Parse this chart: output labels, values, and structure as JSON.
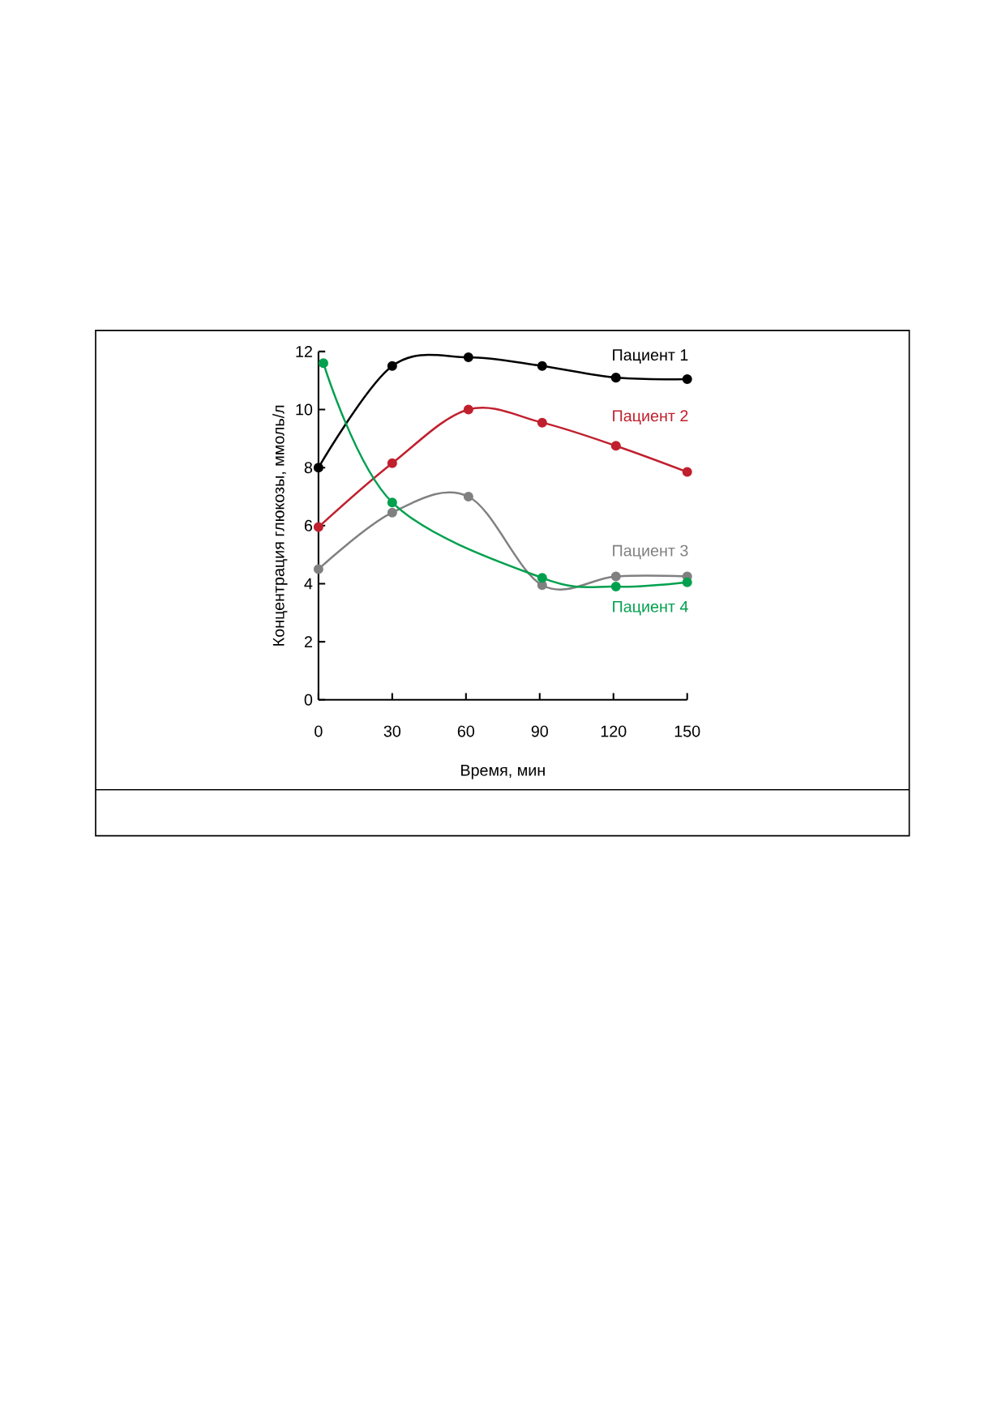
{
  "chart_data": {
    "type": "line",
    "xlabel": "Время, мин",
    "ylabel": "Концентрация глюкозы, ммоль/л",
    "xlim": [
      0,
      150
    ],
    "ylim": [
      0,
      12
    ],
    "xticks": [
      0,
      30,
      60,
      90,
      120,
      150
    ],
    "yticks": [
      0,
      2,
      4,
      6,
      8,
      10,
      12
    ],
    "grid": false,
    "legend": false,
    "marker": "circle",
    "line_style": "solid",
    "series": [
      {
        "name": "Пациент 1",
        "color": "#000000",
        "x": [
          0,
          30,
          61,
          91,
          121,
          150
        ],
        "values": [
          8.0,
          11.5,
          11.8,
          11.5,
          11.1,
          11.05
        ]
      },
      {
        "name": "Пациент 2",
        "color": "#c0202e",
        "x": [
          0,
          30,
          61,
          91,
          121,
          150
        ],
        "values": [
          5.95,
          8.15,
          10.0,
          9.55,
          8.75,
          7.85
        ]
      },
      {
        "name": "Пациент 3",
        "color": "#808080",
        "x": [
          0,
          30,
          61,
          91,
          121,
          150
        ],
        "values": [
          4.5,
          6.45,
          7.0,
          3.95,
          4.25,
          4.25
        ]
      },
      {
        "name": "Пациент 4",
        "color": "#00a04e",
        "x": [
          2,
          30,
          91,
          121,
          150
        ],
        "values": [
          11.6,
          6.8,
          4.2,
          3.9,
          4.05
        ]
      }
    ]
  }
}
